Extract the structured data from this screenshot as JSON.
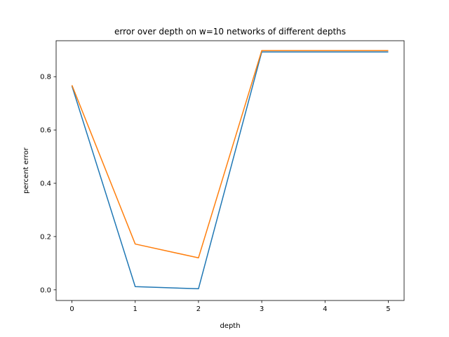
{
  "chart_data": {
    "type": "line",
    "title": "error over depth on w=10 networks of different depths",
    "xlabel": "depth",
    "ylabel": "percent error",
    "x": [
      0,
      1,
      2,
      3,
      4,
      5
    ],
    "xticks": [
      "0",
      "1",
      "2",
      "3",
      "4",
      "5"
    ],
    "yticks": [
      "0.0",
      "0.2",
      "0.4",
      "0.6",
      "0.8"
    ],
    "xlim": [
      -0.25,
      5.25
    ],
    "ylim": [
      -0.04,
      0.935
    ],
    "grid": false,
    "legend": "none",
    "series": [
      {
        "color": "#1f77b4",
        "values": [
          0.765,
          0.012,
          0.004,
          0.893,
          0.893,
          0.893
        ]
      },
      {
        "color": "#ff7f0e",
        "values": [
          0.768,
          0.172,
          0.12,
          0.898,
          0.898,
          0.898
        ]
      }
    ]
  }
}
